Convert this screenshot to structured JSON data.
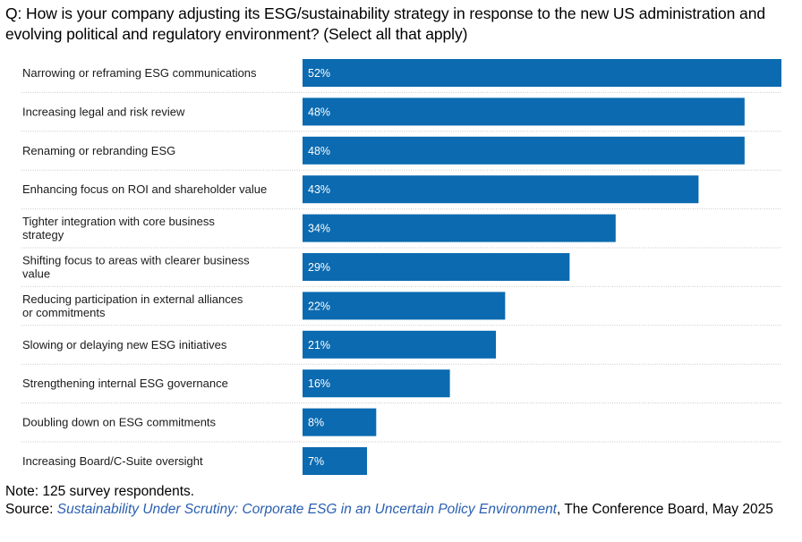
{
  "question": "Q: How is your company adjusting its ESG/sustainability strategy in response to the new US administration and evolving political and regulatory environment? (Select all that apply)",
  "note": "Note: 125 survey respondents.",
  "source": {
    "prefix": "Source: ",
    "title": "Sustainability Under Scrutiny: Corporate ESG in an Uncertain Policy Environment",
    "suffix": ", The Conference Board, May 2025"
  },
  "colors": {
    "bar": "#0b6ab0",
    "gridline": "#c8c8c8"
  },
  "chart_data": {
    "type": "bar",
    "orientation": "horizontal",
    "categories": [
      "Narrowing or reframing ESG communications",
      "Increasing legal and risk review",
      "Renaming or rebranding ESG",
      "Enhancing focus on ROI and shareholder value",
      "Tighter integration with core business strategy",
      "Shifting focus to areas with clearer business value",
      "Reducing participation in external alliances or commitments",
      "Slowing or delaying new ESG initiatives",
      "Strengthening internal ESG governance",
      "Doubling down on ESG commitments",
      "Increasing Board/C-Suite oversight"
    ],
    "values": [
      52,
      48,
      48,
      43,
      34,
      29,
      22,
      21,
      16,
      8,
      7
    ],
    "value_labels": [
      "52%",
      "48%",
      "48%",
      "43%",
      "34%",
      "29%",
      "22%",
      "21%",
      "16%",
      "8%",
      "7%"
    ],
    "xlim": [
      0,
      52
    ],
    "grid": false,
    "legend": false
  }
}
